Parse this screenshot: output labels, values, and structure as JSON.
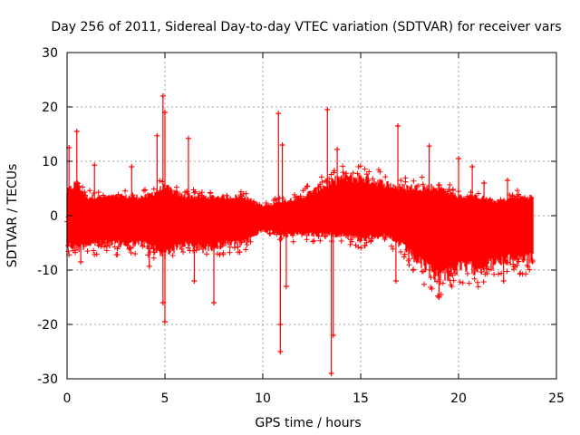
{
  "chart_data": {
    "type": "scatter",
    "title": "Day 256 of 2011, Sidereal Day-to-day VTEC variation (SDTVAR) for receiver vars",
    "xlabel": "GPS time / hours",
    "ylabel": "SDTVAR / TECUs",
    "xlim": [
      0,
      25
    ],
    "ylim": [
      -30,
      30
    ],
    "xticks": [
      0,
      5,
      10,
      15,
      20,
      25
    ],
    "yticks": [
      -30,
      -20,
      -10,
      0,
      10,
      20,
      30
    ],
    "xtick_labels": [
      "0",
      "5",
      "10",
      "15",
      "20",
      "25"
    ],
    "ytick_labels": [
      "-30",
      "-20",
      "-10",
      "0",
      "10",
      "20",
      "30"
    ],
    "grid": true,
    "grid_style": "dotted",
    "series": [
      {
        "name": "SDTVAR",
        "marker": "plus",
        "color": "#ff0000",
        "x_range": [
          0,
          23.8
        ],
        "envelope_points": [
          {
            "x": 0.0,
            "low": -6,
            "high": 5
          },
          {
            "x": 0.5,
            "low": -7,
            "high": 7
          },
          {
            "x": 1.0,
            "low": -6,
            "high": 4
          },
          {
            "x": 2.0,
            "low": -6,
            "high": 4
          },
          {
            "x": 3.0,
            "low": -6,
            "high": 4
          },
          {
            "x": 4.0,
            "low": -6,
            "high": 4
          },
          {
            "x": 5.0,
            "low": -8,
            "high": 6
          },
          {
            "x": 6.0,
            "low": -6,
            "high": 4
          },
          {
            "x": 7.0,
            "low": -7,
            "high": 4
          },
          {
            "x": 8.0,
            "low": -6,
            "high": 4
          },
          {
            "x": 9.0,
            "low": -6,
            "high": 4
          },
          {
            "x": 10.0,
            "low": -3,
            "high": 2
          },
          {
            "x": 11.0,
            "low": -4,
            "high": 3
          },
          {
            "x": 12.0,
            "low": -4,
            "high": 4
          },
          {
            "x": 13.0,
            "low": -4,
            "high": 6
          },
          {
            "x": 14.0,
            "low": -4,
            "high": 8
          },
          {
            "x": 15.0,
            "low": -5,
            "high": 8
          },
          {
            "x": 16.0,
            "low": -4,
            "high": 7
          },
          {
            "x": 17.0,
            "low": -6,
            "high": 6
          },
          {
            "x": 18.0,
            "low": -10,
            "high": 6
          },
          {
            "x": 19.0,
            "low": -13,
            "high": 6
          },
          {
            "x": 20.0,
            "low": -11,
            "high": 4
          },
          {
            "x": 21.0,
            "low": -11,
            "high": 4
          },
          {
            "x": 22.0,
            "low": -10,
            "high": 3
          },
          {
            "x": 23.0,
            "low": -9,
            "high": 4
          },
          {
            "x": 23.8,
            "low": -9,
            "high": 4
          }
        ],
        "spikes": [
          {
            "x": 0.1,
            "y": 12.5
          },
          {
            "x": 0.5,
            "y": 15.5
          },
          {
            "x": 0.7,
            "y": -8.5
          },
          {
            "x": 1.4,
            "y": 9.3
          },
          {
            "x": 3.3,
            "y": 9.0
          },
          {
            "x": 4.2,
            "y": -9.3
          },
          {
            "x": 4.6,
            "y": 14.7
          },
          {
            "x": 4.9,
            "y": 22.0
          },
          {
            "x": 5.0,
            "y": 19.0
          },
          {
            "x": 5.0,
            "y": -19.5
          },
          {
            "x": 4.9,
            "y": -16.0
          },
          {
            "x": 6.2,
            "y": 14.2
          },
          {
            "x": 6.5,
            "y": -12.0
          },
          {
            "x": 7.5,
            "y": -16.0
          },
          {
            "x": 10.8,
            "y": 18.8
          },
          {
            "x": 11.0,
            "y": 13.0
          },
          {
            "x": 10.9,
            "y": -20.0
          },
          {
            "x": 10.9,
            "y": -25.0
          },
          {
            "x": 11.2,
            "y": -13.0
          },
          {
            "x": 13.3,
            "y": 19.5
          },
          {
            "x": 13.5,
            "y": -29.0
          },
          {
            "x": 13.6,
            "y": -22.0
          },
          {
            "x": 13.8,
            "y": 12.2
          },
          {
            "x": 16.9,
            "y": 16.5
          },
          {
            "x": 16.8,
            "y": -12.0
          },
          {
            "x": 18.5,
            "y": 12.8
          },
          {
            "x": 19.0,
            "y": -15.0
          },
          {
            "x": 20.0,
            "y": 10.5
          },
          {
            "x": 20.7,
            "y": 9.0
          },
          {
            "x": 21.3,
            "y": 6.0
          },
          {
            "x": 22.3,
            "y": -12.0
          },
          {
            "x": 22.5,
            "y": 6.5
          },
          {
            "x": 23.0,
            "y": -8.0
          }
        ]
      }
    ]
  }
}
